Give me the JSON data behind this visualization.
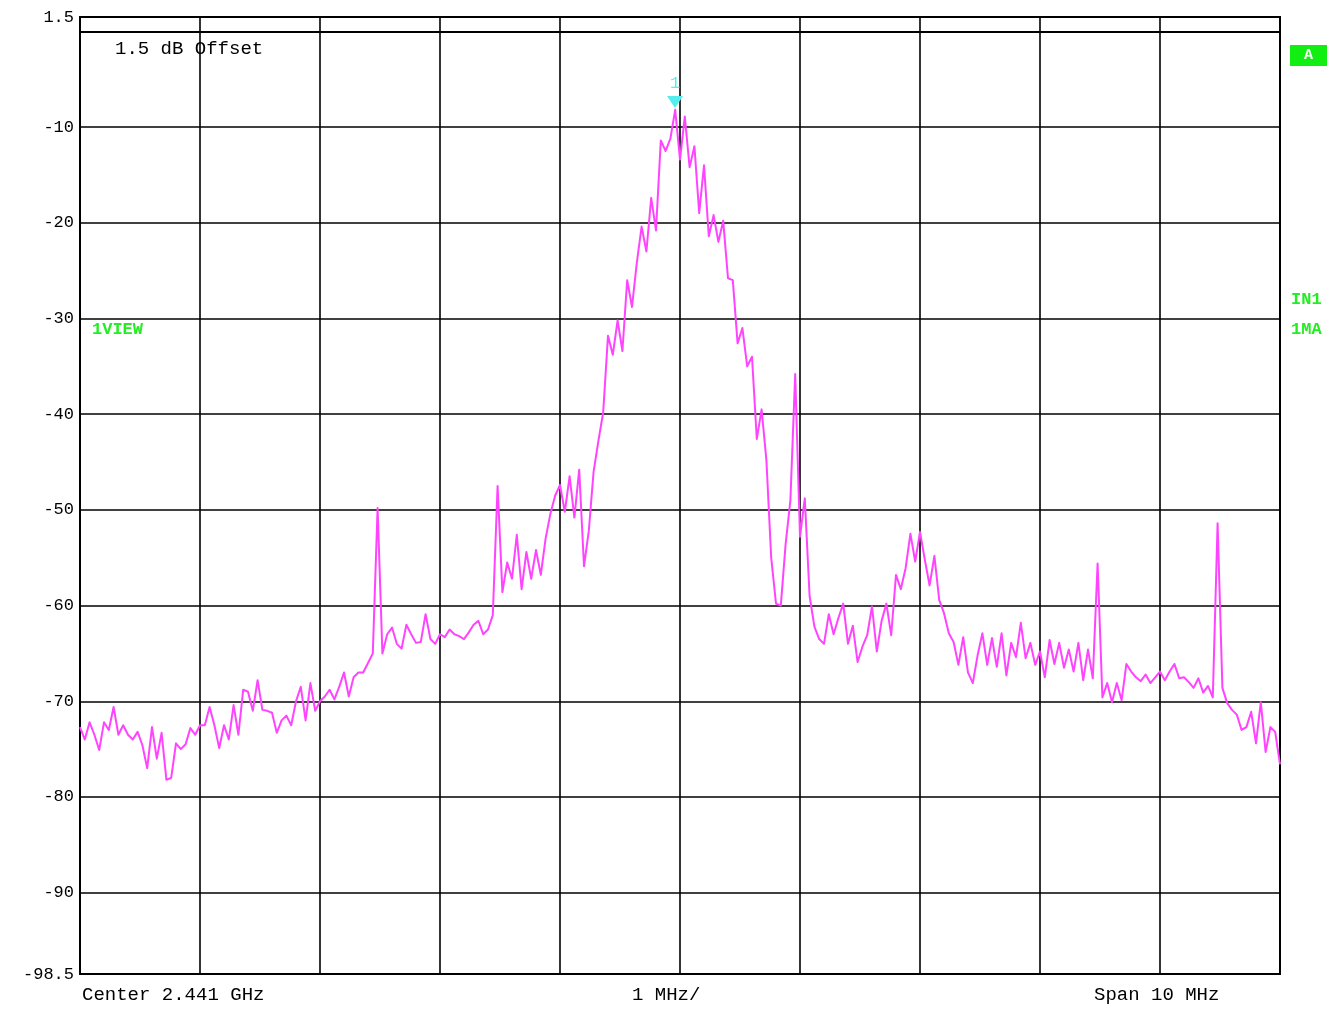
{
  "chart_data": {
    "type": "line",
    "line_style": "solid",
    "grid": true,
    "categories": [
      null,
      null,
      null,
      null,
      null,
      null,
      null,
      null,
      null,
      null,
      null,
      null,
      null,
      null,
      null,
      null,
      null,
      null,
      null,
      null,
      null,
      null,
      null,
      null,
      null,
      null,
      null,
      null,
      null,
      null,
      null,
      null,
      null,
      null,
      null,
      null,
      null,
      null,
      null,
      null,
      null,
      null,
      null,
      null,
      null,
      null,
      null,
      null,
      null,
      null,
      null,
      null,
      null,
      null,
      null,
      null,
      null,
      null,
      null,
      null,
      null,
      null,
      null,
      null,
      null,
      null,
      null,
      null,
      null,
      null,
      null,
      null,
      null,
      null,
      null,
      null,
      null,
      null,
      null,
      null,
      null,
      null,
      null,
      null,
      null,
      null,
      null,
      null,
      null,
      null,
      null,
      null,
      null,
      null,
      null,
      null,
      null,
      null,
      null,
      null,
      null,
      null,
      null,
      null,
      null,
      null,
      null,
      null,
      null,
      null,
      null,
      null,
      null,
      null,
      null,
      null,
      null,
      null,
      null,
      null,
      null,
      null,
      null,
      null,
      null,
      null,
      null,
      null,
      null,
      null,
      null,
      null,
      null,
      null,
      null,
      null,
      null,
      null,
      null,
      null,
      null,
      null,
      null,
      null,
      null,
      null,
      null,
      null,
      null,
      null,
      null,
      null,
      null,
      null,
      null,
      null,
      null,
      null,
      null,
      null,
      null,
      null,
      null,
      null,
      null,
      null,
      null,
      null,
      null,
      null,
      null,
      null,
      null,
      null,
      null,
      null,
      null,
      null,
      null,
      null,
      null,
      null,
      null,
      null,
      null,
      null,
      null,
      null,
      null,
      null,
      null,
      null,
      null,
      null,
      null,
      null,
      null,
      null,
      null,
      null,
      null,
      null,
      null,
      null,
      null,
      null,
      null,
      null,
      null,
      null,
      null,
      null,
      null,
      null,
      null,
      null,
      null,
      null,
      null,
      null,
      null,
      null,
      null,
      null,
      null,
      null,
      null,
      null,
      null,
      null,
      null,
      null,
      null,
      null,
      null,
      null,
      null,
      null,
      null,
      null,
      null,
      null,
      null,
      null,
      null,
      null,
      null,
      null,
      null,
      null,
      null
    ],
    "ylim": [
      -98.5,
      1.5
    ],
    "yticks": [
      -98.5,
      -90,
      -80,
      -70,
      -60,
      -50,
      -40,
      -30,
      -20,
      -10,
      {
        "value": 0,
        "label": null
      },
      1.5
    ],
    "annotations": [
      "1.5 dB Offset",
      "1VIEW",
      "A",
      "IN1",
      "1MA",
      "Center 2.441 GHz",
      "1 MHz/",
      "Span 10 MHz",
      {
        "text": "1",
        "y": -8.2
      }
    ],
    "series": [
      {
        "color": "#ff44ff",
        "values": [
          -72.7,
          -74,
          -72.2,
          -73.5,
          -75.1,
          -72.2,
          -73,
          -70.6,
          -73.5,
          -72.5,
          -73.5,
          -74,
          -73.2,
          -74.6,
          -77,
          -72.7,
          -76,
          -73.3,
          -78.2,
          -78,
          -74.4,
          -75,
          -74.5,
          -72.8,
          -73.5,
          -72.5,
          -72.5,
          -70.6,
          -72.5,
          -74.9,
          -72.5,
          -74,
          -70.4,
          -73.5,
          -68.8,
          -69,
          -71,
          -67.8,
          -70.9,
          -71,
          -71.2,
          -73.3,
          -72,
          -71.5,
          -72.5,
          -70,
          -68.5,
          -72,
          -68.1,
          -71,
          -70,
          -69.5,
          -68.8,
          -69.8,
          -68.5,
          -67,
          -69.5,
          -67.5,
          -67,
          -67,
          -66,
          -65,
          -49.8,
          -65,
          -63,
          -62.3,
          -64,
          -64.5,
          -62,
          -63,
          -63.9,
          -63.8,
          -60.9,
          -63.5,
          -64,
          -63,
          -63.3,
          -62.5,
          -63,
          -63.2,
          -63.5,
          -62.8,
          -62,
          -61.6,
          -63,
          -62.5,
          -61,
          -47.5,
          -58.6,
          -55.5,
          -57.2,
          -52.6,
          -58.3,
          -54.4,
          -57.2,
          -54.2,
          -56.8,
          -53,
          -50.4,
          -48.5,
          -47.4,
          -50.2,
          -46.5,
          -50.8,
          -45.8,
          -55.9,
          -52.2,
          -46,
          -42.8,
          -39.8,
          -31.8,
          -33.8,
          -30.2,
          -33.4,
          -26,
          -28.8,
          -24.2,
          -20.4,
          -23,
          -17.4,
          -20.8,
          -11.4,
          -12.5,
          -11.2,
          -8.2,
          -13.4,
          -8.9,
          -14.2,
          -12,
          -19,
          -14,
          -21.4,
          -19.2,
          -22,
          -19.8,
          -25.8,
          -26,
          -32.6,
          -31,
          -35,
          -34,
          -42.6,
          -39.5,
          -44.8,
          -55,
          -59.8,
          -60,
          -53.6,
          -49,
          -35.8,
          -52.8,
          -48.8,
          -59,
          -62.2,
          -63.5,
          -64,
          -60.9,
          -63,
          -61.3,
          -59.8,
          -64,
          -62.1,
          -65.9,
          -64.3,
          -63.1,
          -60.1,
          -64.8,
          -61.6,
          -59.8,
          -63.1,
          -56.8,
          -58.3,
          -56.1,
          -52.5,
          -55.4,
          -52.3,
          -55.2,
          -57.9,
          -54.8,
          -59.4,
          -60.8,
          -62.9,
          -63.8,
          -66.2,
          -63.3,
          -67,
          -68.1,
          -65.2,
          -62.9,
          -66.2,
          -63.4,
          -66.4,
          -62.9,
          -67.3,
          -63.9,
          -65.4,
          -61.8,
          -65.5,
          -63.9,
          -66.2,
          -64.8,
          -67.5,
          -63.6,
          -66.1,
          -63.9,
          -66.5,
          -64.6,
          -66.9,
          -63.9,
          -67.8,
          -64.6,
          -67.6,
          -55.6,
          -69.6,
          -68.1,
          -70.1,
          -68.1,
          -69.9,
          -66.1,
          -66.9,
          -67.5,
          -67.9,
          -67.2,
          -68.1,
          -67.5,
          -66.9,
          -67.8,
          -66.9,
          -66.1,
          -67.6,
          -67.5,
          -68,
          -68.6,
          -67.6,
          -69.1,
          -68.4,
          -69.6,
          -51.4,
          -68.6,
          -70.2,
          -70.9,
          -71.4,
          -73,
          -72.7,
          -71.1,
          -74.4,
          -70.1,
          -75.3,
          -72.7,
          -73.2,
          -76.6
        ]
      }
    ]
  }
}
